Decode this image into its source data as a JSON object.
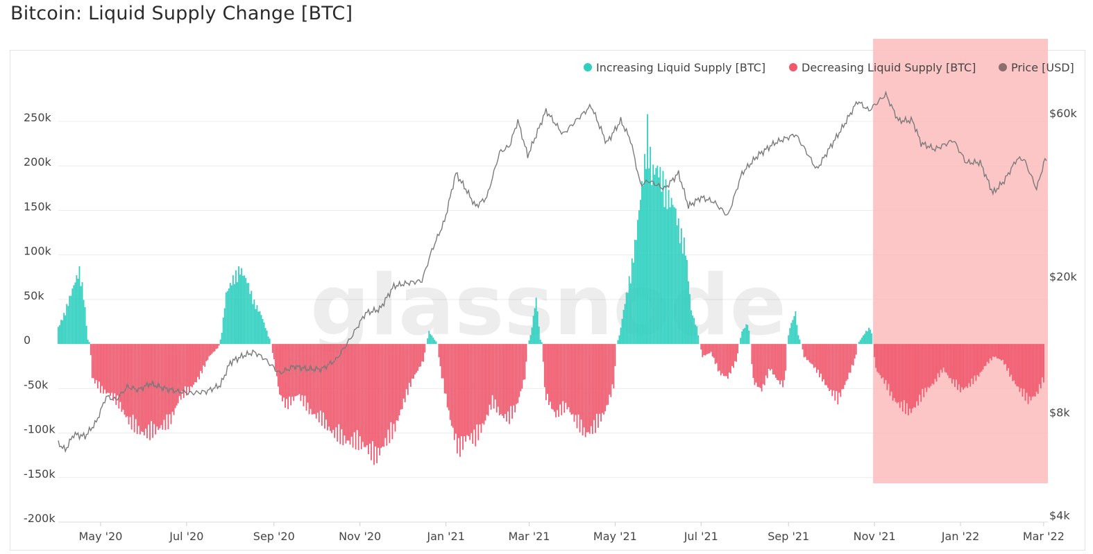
{
  "title": "Bitcoin: Liquid Supply Change [BTC]",
  "watermark": "glassnode",
  "colors": {
    "increase": "#2ecfbf",
    "decrease": "#f0596d",
    "price": "#7a7a7a",
    "highlight": "#fbbcbc",
    "grid": "#ececec"
  },
  "chart_data": {
    "type": "bar",
    "title": "Bitcoin: Liquid Supply Change [BTC]",
    "x_range": [
      "2020-04-01",
      "2022-03-04"
    ],
    "x_ticks": [
      {
        "date": "2020-05-01",
        "label": "May '20"
      },
      {
        "date": "2020-07-01",
        "label": "Jul '20"
      },
      {
        "date": "2020-09-01",
        "label": "Sep '20"
      },
      {
        "date": "2020-11-01",
        "label": "Nov '20"
      },
      {
        "date": "2021-01-01",
        "label": "Jan '21"
      },
      {
        "date": "2021-03-01",
        "label": "Mar '21"
      },
      {
        "date": "2021-05-01",
        "label": "May '21"
      },
      {
        "date": "2021-07-01",
        "label": "Jul '21"
      },
      {
        "date": "2021-09-01",
        "label": "Sep '21"
      },
      {
        "date": "2021-11-01",
        "label": "Nov '21"
      },
      {
        "date": "2022-01-01",
        "label": "Jan '22"
      },
      {
        "date": "2022-03-01",
        "label": "Mar '22"
      }
    ],
    "y_left": {
      "lim": [
        -200000,
        250000
      ],
      "ticks": [
        {
          "value": 250000,
          "label": "250k"
        },
        {
          "value": 200000,
          "label": "200k"
        },
        {
          "value": 150000,
          "label": "150k"
        },
        {
          "value": 100000,
          "label": "100k"
        },
        {
          "value": 50000,
          "label": "50k"
        },
        {
          "value": 0,
          "label": "0"
        },
        {
          "value": -50000,
          "label": "-50k"
        },
        {
          "value": -100000,
          "label": "-100k"
        },
        {
          "value": -150000,
          "label": "-150k"
        },
        {
          "value": -200000,
          "label": "-200k"
        }
      ]
    },
    "y_right": {
      "scale": "log",
      "ticks": [
        {
          "value": 60000,
          "label": "$60k"
        },
        {
          "value": 20000,
          "label": "$20k"
        },
        {
          "value": 8000,
          "label": "$8k"
        },
        {
          "value": 4000,
          "label": "$4k"
        }
      ]
    },
    "legend": {
      "placement": "top-right",
      "items": [
        {
          "label": "Increasing Liquid Supply [BTC]",
          "color": "#2ecfbf"
        },
        {
          "label": "Decreasing Liquid Supply [BTC]",
          "color": "#f0596d"
        },
        {
          "label": "Price [USD]",
          "color": "#8b6e6e"
        }
      ]
    },
    "highlight_range": [
      "2021-10-31",
      "2022-03-04"
    ],
    "grid": true,
    "series": [
      {
        "name": "Liquid Supply Change [BTC]",
        "points": [
          [
            "2020-04-01",
            20000
          ],
          [
            "2020-04-05",
            35000
          ],
          [
            "2020-04-09",
            55000
          ],
          [
            "2020-04-13",
            75000
          ],
          [
            "2020-04-16",
            88000
          ],
          [
            "2020-04-19",
            60000
          ],
          [
            "2020-04-22",
            5000
          ],
          [
            "2020-04-25",
            -40000
          ],
          [
            "2020-05-01",
            -55000
          ],
          [
            "2020-05-08",
            -60000
          ],
          [
            "2020-05-15",
            -75000
          ],
          [
            "2020-05-22",
            -95000
          ],
          [
            "2020-05-29",
            -105000
          ],
          [
            "2020-06-05",
            -108000
          ],
          [
            "2020-06-12",
            -100000
          ],
          [
            "2020-06-19",
            -95000
          ],
          [
            "2020-06-26",
            -65000
          ],
          [
            "2020-07-03",
            -55000
          ],
          [
            "2020-07-10",
            -40000
          ],
          [
            "2020-07-17",
            -15000
          ],
          [
            "2020-07-23",
            -5000
          ],
          [
            "2020-07-26",
            15000
          ],
          [
            "2020-07-29",
            60000
          ],
          [
            "2020-08-03",
            78000
          ],
          [
            "2020-08-08",
            90000
          ],
          [
            "2020-08-13",
            75000
          ],
          [
            "2020-08-18",
            50000
          ],
          [
            "2020-08-23",
            35000
          ],
          [
            "2020-08-28",
            10000
          ],
          [
            "2020-09-01",
            -20000
          ],
          [
            "2020-09-05",
            -60000
          ],
          [
            "2020-09-10",
            -75000
          ],
          [
            "2020-09-18",
            -60000
          ],
          [
            "2020-09-26",
            -80000
          ],
          [
            "2020-10-04",
            -90000
          ],
          [
            "2020-10-12",
            -105000
          ],
          [
            "2020-10-20",
            -115000
          ],
          [
            "2020-10-28",
            -118000
          ],
          [
            "2020-11-05",
            -122000
          ],
          [
            "2020-11-12",
            -138000
          ],
          [
            "2020-11-18",
            -120000
          ],
          [
            "2020-11-25",
            -105000
          ],
          [
            "2020-12-02",
            -70000
          ],
          [
            "2020-12-09",
            -40000
          ],
          [
            "2020-12-16",
            -20000
          ],
          [
            "2020-12-20",
            15000
          ],
          [
            "2020-12-24",
            5000
          ],
          [
            "2020-12-28",
            -30000
          ],
          [
            "2021-01-04",
            -90000
          ],
          [
            "2021-01-10",
            -130000
          ],
          [
            "2021-01-16",
            -110000
          ],
          [
            "2021-01-22",
            -115000
          ],
          [
            "2021-01-28",
            -95000
          ],
          [
            "2021-02-03",
            -70000
          ],
          [
            "2021-02-09",
            -85000
          ],
          [
            "2021-02-15",
            -90000
          ],
          [
            "2021-02-20",
            -75000
          ],
          [
            "2021-02-26",
            -40000
          ],
          [
            "2021-03-02",
            10000
          ],
          [
            "2021-03-06",
            55000
          ],
          [
            "2021-03-09",
            5000
          ],
          [
            "2021-03-12",
            -60000
          ],
          [
            "2021-03-20",
            -85000
          ],
          [
            "2021-03-28",
            -75000
          ],
          [
            "2021-04-04",
            -95000
          ],
          [
            "2021-04-10",
            -108000
          ],
          [
            "2021-04-17",
            -100000
          ],
          [
            "2021-04-24",
            -80000
          ],
          [
            "2021-04-30",
            -50000
          ],
          [
            "2021-05-04",
            10000
          ],
          [
            "2021-05-08",
            50000
          ],
          [
            "2021-05-12",
            85000
          ],
          [
            "2021-05-16",
            130000
          ],
          [
            "2021-05-19",
            175000
          ],
          [
            "2021-05-22",
            215000
          ],
          [
            "2021-05-24",
            258000
          ],
          [
            "2021-05-27",
            205000
          ],
          [
            "2021-05-31",
            210000
          ],
          [
            "2021-06-04",
            195000
          ],
          [
            "2021-06-08",
            175000
          ],
          [
            "2021-06-12",
            165000
          ],
          [
            "2021-06-16",
            135000
          ],
          [
            "2021-06-20",
            115000
          ],
          [
            "2021-06-24",
            40000
          ],
          [
            "2021-06-28",
            20000
          ],
          [
            "2021-07-02",
            -15000
          ],
          [
            "2021-07-08",
            -10000
          ],
          [
            "2021-07-14",
            -35000
          ],
          [
            "2021-07-20",
            -40000
          ],
          [
            "2021-07-26",
            -20000
          ],
          [
            "2021-07-30",
            15000
          ],
          [
            "2021-08-03",
            25000
          ],
          [
            "2021-08-07",
            -45000
          ],
          [
            "2021-08-13",
            -55000
          ],
          [
            "2021-08-19",
            -30000
          ],
          [
            "2021-08-25",
            -45000
          ],
          [
            "2021-08-29",
            -50000
          ],
          [
            "2021-09-02",
            20000
          ],
          [
            "2021-09-06",
            38000
          ],
          [
            "2021-09-08",
            10000
          ],
          [
            "2021-09-12",
            -15000
          ],
          [
            "2021-09-18",
            -25000
          ],
          [
            "2021-09-24",
            -40000
          ],
          [
            "2021-09-30",
            -55000
          ],
          [
            "2021-10-06",
            -68000
          ],
          [
            "2021-10-12",
            -45000
          ],
          [
            "2021-10-18",
            -20000
          ],
          [
            "2021-10-22",
            5000
          ],
          [
            "2021-10-26",
            15000
          ],
          [
            "2021-10-29",
            20000
          ],
          [
            "2021-11-02",
            -30000
          ],
          [
            "2021-11-08",
            -45000
          ],
          [
            "2021-11-14",
            -65000
          ],
          [
            "2021-11-20",
            -75000
          ],
          [
            "2021-11-26",
            -82000
          ],
          [
            "2021-12-02",
            -70000
          ],
          [
            "2021-12-08",
            -55000
          ],
          [
            "2021-12-14",
            -45000
          ],
          [
            "2021-12-20",
            -30000
          ],
          [
            "2021-12-26",
            -45000
          ],
          [
            "2022-01-01",
            -55000
          ],
          [
            "2022-01-07",
            -50000
          ],
          [
            "2022-01-13",
            -40000
          ],
          [
            "2022-01-19",
            -25000
          ],
          [
            "2022-01-25",
            -15000
          ],
          [
            "2022-01-31",
            -20000
          ],
          [
            "2022-02-06",
            -40000
          ],
          [
            "2022-02-12",
            -55000
          ],
          [
            "2022-02-18",
            -68000
          ],
          [
            "2022-02-24",
            -60000
          ],
          [
            "2022-03-02",
            -40000
          ]
        ]
      },
      {
        "name": "Price [USD]",
        "points": [
          [
            "2020-04-01",
            6500
          ],
          [
            "2020-04-06",
            6200
          ],
          [
            "2020-04-12",
            6900
          ],
          [
            "2020-04-20",
            6800
          ],
          [
            "2020-04-28",
            7500
          ],
          [
            "2020-05-05",
            8900
          ],
          [
            "2020-05-12",
            8700
          ],
          [
            "2020-05-20",
            9500
          ],
          [
            "2020-05-28",
            9300
          ],
          [
            "2020-06-05",
            9700
          ],
          [
            "2020-06-15",
            9400
          ],
          [
            "2020-06-25",
            9200
          ],
          [
            "2020-07-05",
            9100
          ],
          [
            "2020-07-15",
            9200
          ],
          [
            "2020-07-25",
            9600
          ],
          [
            "2020-08-01",
            11200
          ],
          [
            "2020-08-10",
            11700
          ],
          [
            "2020-08-18",
            12000
          ],
          [
            "2020-08-25",
            11500
          ],
          [
            "2020-09-05",
            10400
          ],
          [
            "2020-09-15",
            10900
          ],
          [
            "2020-09-25",
            10700
          ],
          [
            "2020-10-05",
            10700
          ],
          [
            "2020-10-15",
            11400
          ],
          [
            "2020-10-25",
            13100
          ],
          [
            "2020-11-05",
            15600
          ],
          [
            "2020-11-15",
            16000
          ],
          [
            "2020-11-25",
            18700
          ],
          [
            "2020-12-05",
            19100
          ],
          [
            "2020-12-15",
            19400
          ],
          [
            "2020-12-22",
            23800
          ],
          [
            "2020-12-31",
            29000
          ],
          [
            "2021-01-08",
            40000
          ],
          [
            "2021-01-15",
            36000
          ],
          [
            "2021-01-22",
            32000
          ],
          [
            "2021-01-30",
            34000
          ],
          [
            "2021-02-08",
            46000
          ],
          [
            "2021-02-15",
            48000
          ],
          [
            "2021-02-21",
            57000
          ],
          [
            "2021-02-28",
            45000
          ],
          [
            "2021-03-13",
            61000
          ],
          [
            "2021-03-25",
            52000
          ],
          [
            "2021-04-05",
            58000
          ],
          [
            "2021-04-14",
            63000
          ],
          [
            "2021-04-25",
            49000
          ],
          [
            "2021-05-05",
            57000
          ],
          [
            "2021-05-12",
            50000
          ],
          [
            "2021-05-19",
            37000
          ],
          [
            "2021-05-25",
            38000
          ],
          [
            "2021-06-05",
            36000
          ],
          [
            "2021-06-15",
            40000
          ],
          [
            "2021-06-22",
            32000
          ],
          [
            "2021-07-01",
            34000
          ],
          [
            "2021-07-10",
            33000
          ],
          [
            "2021-07-20",
            30000
          ],
          [
            "2021-07-30",
            40000
          ],
          [
            "2021-08-10",
            45000
          ],
          [
            "2021-08-22",
            49000
          ],
          [
            "2021-09-06",
            52000
          ],
          [
            "2021-09-14",
            46000
          ],
          [
            "2021-09-21",
            41000
          ],
          [
            "2021-10-01",
            48000
          ],
          [
            "2021-10-10",
            55000
          ],
          [
            "2021-10-20",
            65000
          ],
          [
            "2021-10-28",
            61000
          ],
          [
            "2021-11-09",
            68000
          ],
          [
            "2021-11-18",
            57000
          ],
          [
            "2021-11-28",
            57000
          ],
          [
            "2021-12-04",
            49000
          ],
          [
            "2021-12-14",
            47000
          ],
          [
            "2021-12-27",
            50000
          ],
          [
            "2022-01-05",
            43000
          ],
          [
            "2022-01-15",
            43000
          ],
          [
            "2022-01-24",
            35000
          ],
          [
            "2022-02-01",
            38000
          ],
          [
            "2022-02-10",
            44000
          ],
          [
            "2022-02-15",
            44000
          ],
          [
            "2022-02-24",
            36000
          ],
          [
            "2022-03-02",
            44000
          ],
          [
            "2022-03-03",
            43500
          ]
        ]
      }
    ]
  }
}
